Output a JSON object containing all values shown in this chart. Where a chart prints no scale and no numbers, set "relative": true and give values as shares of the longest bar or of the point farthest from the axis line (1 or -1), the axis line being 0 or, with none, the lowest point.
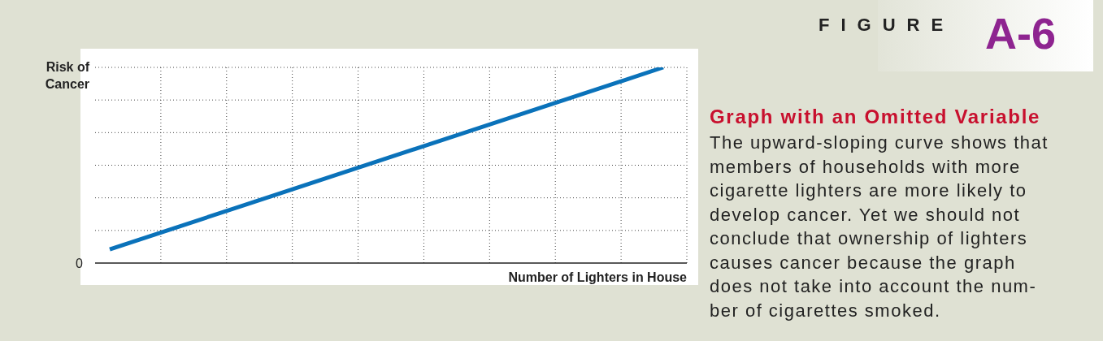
{
  "chart_data": {
    "type": "line",
    "title": "Graph with an Omitted Variable",
    "subtitle": "The upward-sloping curve shows that members of households with more cigarette lighters are more likely to develop cancer. Yet we should not conclude that ownership of lighters causes cancer because the graph does not take into account the num-ber of cigarettes smoked.",
    "annotations": [
      "FIGURE",
      "A-6",
      "0"
    ],
    "xlabel": "Number of Lighters in House",
    "ylabel": "Risk of Cancer",
    "categories": [
      null,
      null
    ],
    "relative": true,
    "grid": true,
    "series": [
      {
        "color": "#0a72ba",
        "values": [
          0.07,
          1
        ]
      }
    ]
  }
}
